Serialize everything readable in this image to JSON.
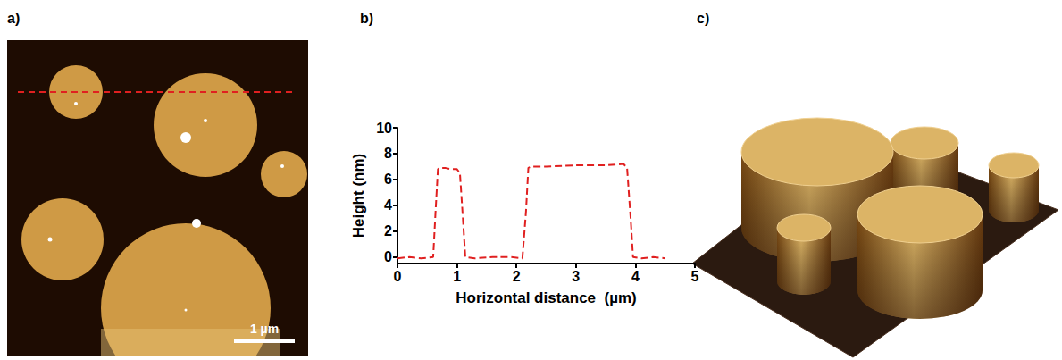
{
  "figure": {
    "panel_labels": [
      "a)",
      "b)",
      "c)"
    ],
    "scale_bar": "1 µm"
  },
  "chart_data": {
    "type": "line",
    "x_label": "Horizontal distance  (µm)",
    "y_label": "Height (nm)",
    "x": [
      0,
      0.2,
      0.4,
      0.6,
      0.64,
      0.68,
      0.72,
      0.8,
      0.9,
      1.0,
      1.05,
      1.1,
      1.14,
      1.3,
      1.6,
      1.9,
      2.1,
      2.16,
      2.2,
      2.25,
      2.5,
      3.0,
      3.5,
      3.8,
      3.86,
      3.92,
      3.96,
      4.1,
      4.3,
      4.5
    ],
    "values": [
      -0.1,
      0,
      -0.1,
      0,
      3.5,
      6.8,
      6.9,
      6.9,
      6.8,
      6.8,
      6.5,
      3,
      0,
      -0.1,
      0,
      0,
      -0.1,
      3.5,
      6.9,
      7.0,
      7.0,
      7.1,
      7.1,
      7.2,
      6.9,
      3,
      0,
      -0.1,
      0,
      -0.1
    ],
    "color": "#e02020",
    "line_style": "dashed",
    "xlim": [
      0,
      5
    ],
    "xticks": [
      0,
      1,
      2,
      3,
      4,
      5
    ],
    "ylim": [
      -0.5,
      10
    ],
    "yticks": [
      0,
      2,
      4,
      6,
      8,
      10
    ],
    "grid": false
  }
}
